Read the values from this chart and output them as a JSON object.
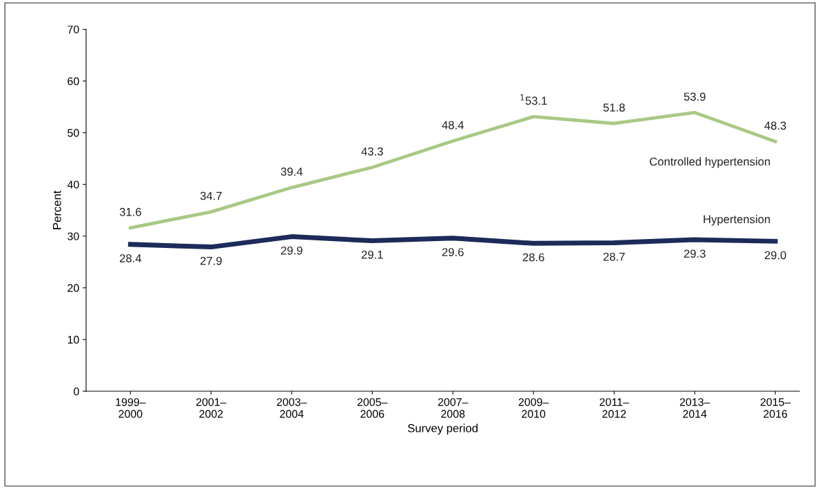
{
  "chart_data": {
    "type": "line",
    "xlabel": "Survey period",
    "ylabel": "Percent",
    "categories": [
      "1999–\n2000",
      "2001–\n2002",
      "2003–\n2004",
      "2005–\n2006",
      "2007–\n2008",
      "2009–\n2010",
      "2011–\n2012",
      "2013–\n2014",
      "2015–\n2016"
    ],
    "series": [
      {
        "name": "Controlled hypertension",
        "color": "#a8c985",
        "values": [
          31.6,
          34.7,
          39.4,
          43.3,
          48.4,
          53.1,
          51.8,
          53.9,
          48.3
        ],
        "value_labels": [
          "31.6",
          "34.7",
          "39.4",
          "43.3",
          "48.4",
          "$^{1}$53.1",
          "51.8",
          "53.9",
          "48.3"
        ]
      },
      {
        "name": "Hypertension",
        "color": "#1c2b59",
        "values": [
          28.4,
          27.9,
          29.9,
          29.1,
          29.6,
          28.6,
          28.7,
          29.3,
          29.0
        ],
        "value_labels": [
          "28.4",
          "27.9",
          "29.9",
          "29.1",
          "29.6",
          "28.6",
          "28.7",
          "29.3",
          "29.0"
        ]
      }
    ],
    "ylim": [
      0,
      70
    ],
    "yticks": [
      0,
      10,
      20,
      30,
      40,
      50,
      60,
      70
    ],
    "grid": false,
    "legend": false,
    "marker": "none",
    "line_style": "solid"
  }
}
